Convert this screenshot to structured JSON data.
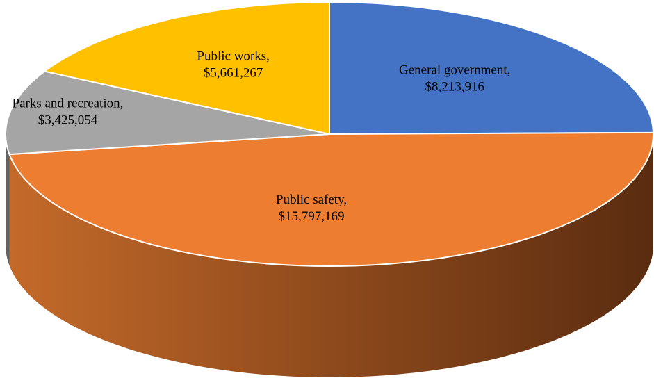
{
  "chart_data": {
    "type": "pie",
    "title": "",
    "three_d": true,
    "legend": "none",
    "slices": [
      {
        "name": "General government",
        "value": 8213916,
        "value_label": "$8,213,916",
        "color": "#4472C4"
      },
      {
        "name": "Public safety",
        "value": 15797169,
        "value_label": "$15,797,169",
        "color": "#ED7D31"
      },
      {
        "name": "Parks and recreation",
        "value": 3425054,
        "value_label": "$3,425,054",
        "color": "#A5A5A5"
      },
      {
        "name": "Public works",
        "value": 5661267,
        "value_label": "$5,661,267",
        "color": "#FFC000"
      }
    ]
  }
}
